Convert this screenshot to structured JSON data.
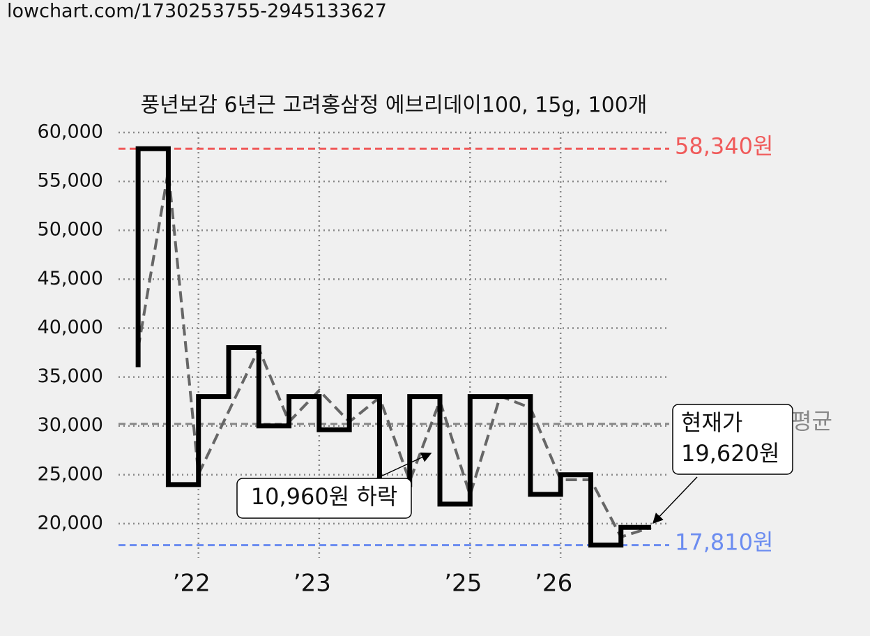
{
  "url": "lowchart.com/1730253755-2945133627",
  "chart_data": {
    "type": "line",
    "title": "풍년보감 6년근 고려홍삼정 에브리데이100, 15g, 100개",
    "xlim": [
      -0.65,
      17.6
    ],
    "xticks": [
      {
        "value": 2,
        "label": "’22"
      },
      {
        "value": 6,
        "label": "’23"
      },
      {
        "value": 11,
        "label": "’25"
      },
      {
        "value": 14,
        "label": "’26"
      }
    ],
    "ylim": [
      16500,
      60000
    ],
    "yticks": [
      {
        "value": 20000,
        "label": "20,000"
      },
      {
        "value": 25000,
        "label": "25,000"
      },
      {
        "value": 30000,
        "label": "30,000"
      },
      {
        "value": 35000,
        "label": "35,000"
      },
      {
        "value": 40000,
        "label": "40,000"
      },
      {
        "value": 45000,
        "label": "45,000"
      },
      {
        "value": 50000,
        "label": "50,000"
      },
      {
        "value": 55000,
        "label": "55,000"
      },
      {
        "value": 60000,
        "label": "60,000"
      }
    ],
    "grid": true,
    "series": [
      {
        "color": "#666666",
        "style": "dashed",
        "x": [
          0,
          1,
          2,
          4,
          5,
          6,
          7,
          8,
          9,
          10,
          11,
          12,
          13,
          14,
          15,
          16,
          17
        ],
        "values": [
          37900,
          56080,
          25060,
          37900,
          30410,
          33620,
          30410,
          32900,
          24350,
          32550,
          22920,
          33050,
          31840,
          24490,
          24490,
          18640,
          19620
        ]
      },
      {
        "color": "#000000",
        "style": "step",
        "x": [
          0,
          0,
          1,
          2,
          3,
          4,
          5,
          6,
          7,
          8,
          9,
          10,
          11,
          13,
          14,
          15,
          16,
          17
        ],
        "values": [
          36000,
          58340,
          24000,
          33000,
          38000,
          30000,
          33000,
          29600,
          33000,
          24000,
          33000,
          22000,
          33000,
          23000,
          25000,
          17810,
          19620,
          19620
        ]
      }
    ],
    "ref_lines": [
      {
        "value": 58340,
        "label": "58,340원",
        "color": "#f05a5a"
      },
      {
        "value": 17810,
        "label": "17,810원",
        "color": "#6b8cf0"
      },
      {
        "value": 30200,
        "label": "평균",
        "color": "#888888"
      }
    ],
    "annotations": [
      {
        "lines": [
          "10,960원 하락"
        ]
      },
      {
        "lines": [
          "현재가",
          "19,620원"
        ]
      }
    ]
  }
}
